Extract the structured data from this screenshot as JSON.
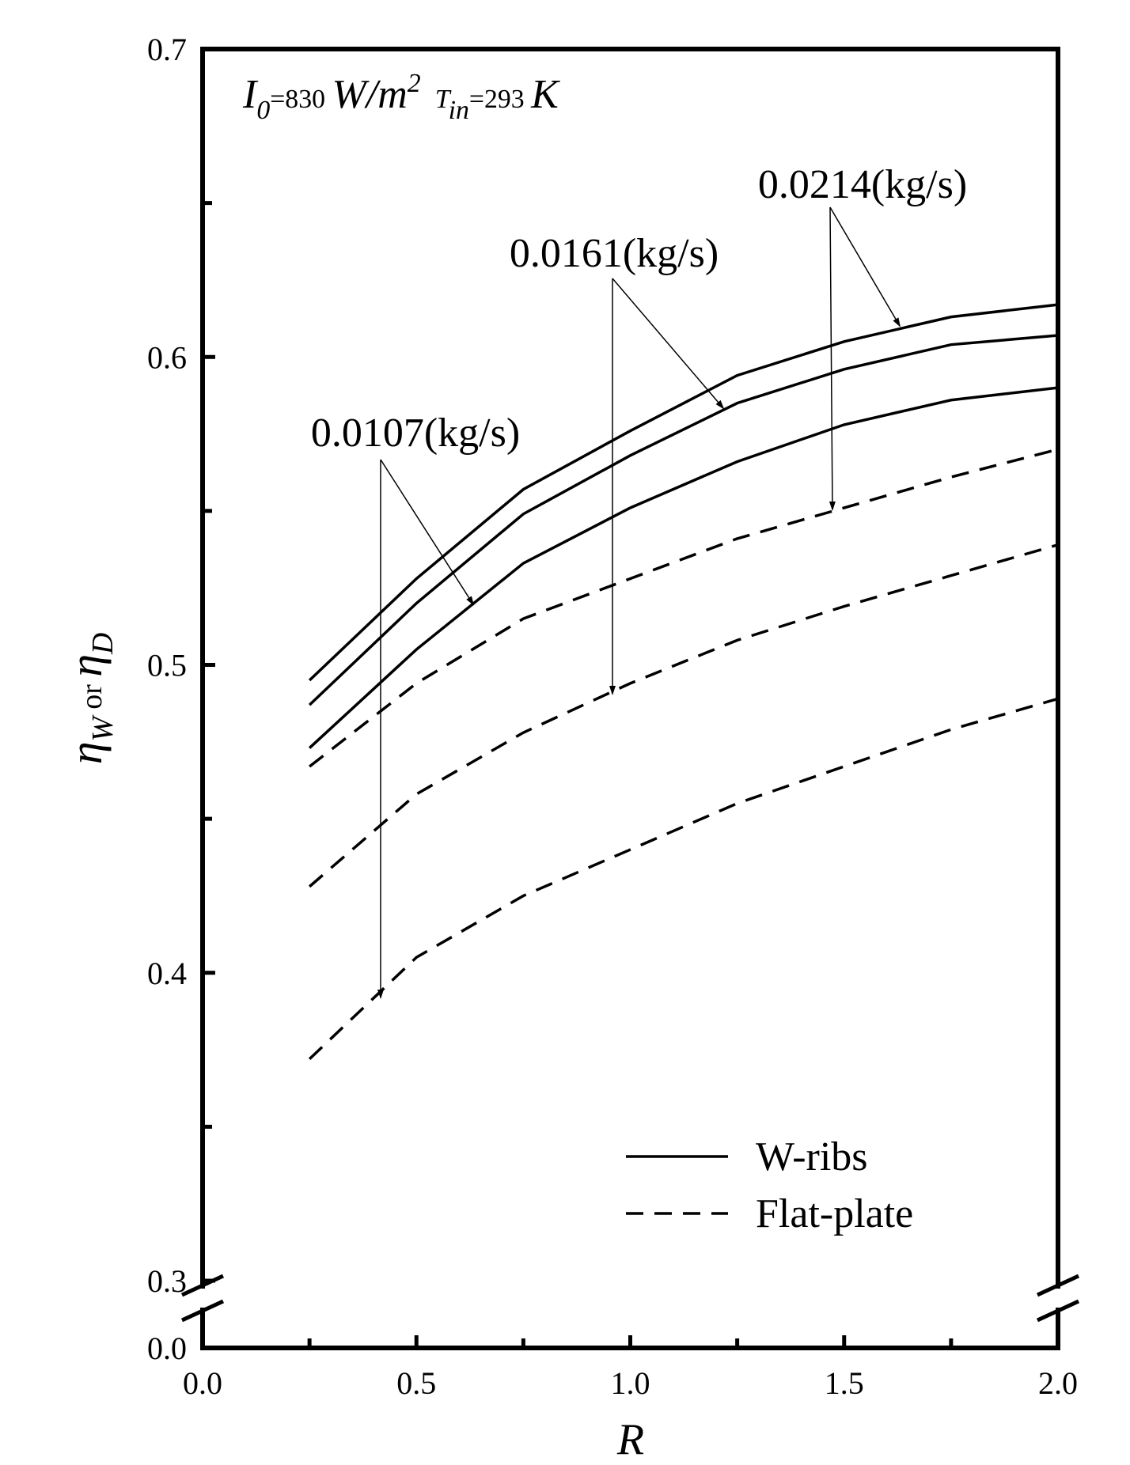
{
  "chart_data": {
    "type": "line",
    "conditions": [
      "I",
      "0",
      "=830 ",
      "W/m",
      "2",
      "T",
      "in",
      "=293 ",
      "K"
    ],
    "y_label": [
      "η",
      "W",
      " or ",
      "η",
      "D"
    ],
    "x_label": "R",
    "x": [
      0.25,
      0.5,
      0.75,
      1.0,
      1.25,
      1.5,
      1.75,
      2.0
    ],
    "series": [
      {
        "name": "W-ribs",
        "color": "#000000",
        "dashed": false,
        "values": [
          0.495,
          0.528,
          0.557,
          0.576,
          0.594,
          0.605,
          0.613,
          0.617
        ]
      },
      {
        "name": "W-ribs",
        "color": "#000000",
        "dashed": false,
        "values": [
          0.487,
          0.52,
          0.549,
          0.568,
          0.585,
          0.596,
          0.604,
          0.607
        ]
      },
      {
        "name": "W-ribs",
        "color": "#000000",
        "dashed": false,
        "values": [
          0.473,
          0.505,
          0.533,
          0.551,
          0.566,
          0.578,
          0.586,
          0.59
        ]
      },
      {
        "name": "Flat-plate",
        "color": "#000000",
        "dashed": true,
        "values": [
          0.467,
          0.494,
          0.515,
          0.528,
          0.541,
          0.551,
          0.561,
          0.57
        ]
      },
      {
        "name": "Flat-plate",
        "color": "#000000",
        "dashed": true,
        "values": [
          0.428,
          0.458,
          0.478,
          0.494,
          0.508,
          0.519,
          0.529,
          0.539
        ]
      },
      {
        "name": "Flat-plate",
        "color": "#000000",
        "dashed": true,
        "values": [
          0.372,
          0.405,
          0.425,
          0.44,
          0.455,
          0.467,
          0.479,
          0.489
        ]
      }
    ],
    "annotations": [
      "0.0214(kg/s)",
      "0.0161(kg/s)",
      "0.0107(kg/s)"
    ],
    "xlim": [
      0,
      2
    ],
    "xticks": [
      {
        "value": 0,
        "label": "0.0"
      },
      0.5,
      {
        "value": 1,
        "label": "1.0"
      },
      1.5,
      {
        "value": 2,
        "label": "2.0"
      }
    ],
    "x_minor_ticks": [
      0.25,
      0.75,
      1.25,
      1.75
    ],
    "ylim": [
      0.3,
      0.7
    ],
    "yticks": [
      {
        "value": 0,
        "label": "0.0"
      },
      0.3,
      0.4,
      0.5,
      0.6,
      0.7
    ],
    "y_minor_ticks": [
      0.35,
      0.45,
      0.55,
      0.65
    ],
    "axis_break": true
  }
}
